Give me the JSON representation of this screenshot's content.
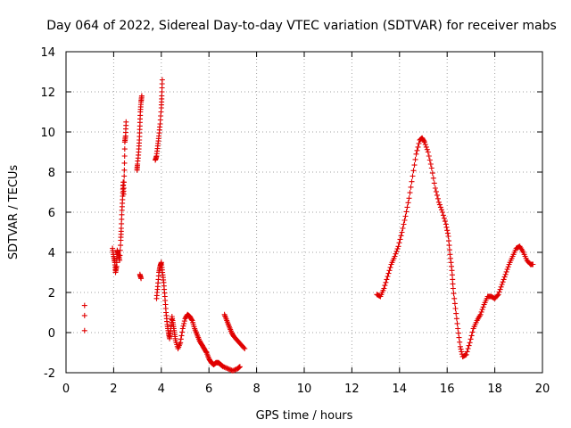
{
  "chart_data": {
    "type": "scatter",
    "title": "Day 064 of 2022, Sidereal Day-to-day VTEC variation (SDTVAR) for receiver mabs",
    "xlabel": "GPS time / hours",
    "ylabel": "SDTVAR / TECUs",
    "xlim": [
      0,
      20
    ],
    "ylim": [
      -2,
      14
    ],
    "xticks": [
      0,
      2,
      4,
      6,
      8,
      10,
      12,
      14,
      16,
      18,
      20
    ],
    "yticks": [
      -2,
      0,
      2,
      4,
      6,
      8,
      10,
      12,
      14
    ],
    "grid": true,
    "marker": "+",
    "color": "#e00000",
    "series": [
      {
        "name": "SDTVAR",
        "points": [
          [
            0.78,
            1.35
          ],
          [
            0.78,
            0.85
          ],
          [
            0.78,
            0.1
          ],
          [
            1.95,
            4.2
          ],
          [
            2.0,
            3.8
          ],
          [
            2.05,
            3.5
          ],
          [
            2.08,
            3.0
          ],
          [
            2.12,
            3.3
          ],
          [
            2.15,
            4.1
          ],
          [
            2.2,
            3.9
          ],
          [
            2.25,
            3.6
          ],
          [
            2.3,
            4.6
          ],
          [
            2.32,
            5.2
          ],
          [
            2.35,
            6.1
          ],
          [
            2.38,
            6.8
          ],
          [
            2.4,
            7.5
          ],
          [
            2.42,
            6.9
          ],
          [
            2.45,
            8.1
          ],
          [
            2.47,
            9.5
          ],
          [
            2.5,
            9.8
          ],
          [
            2.52,
            10.5
          ],
          [
            2.98,
            8.1
          ],
          [
            3.0,
            8.4
          ],
          [
            3.05,
            9.0
          ],
          [
            3.08,
            9.6
          ],
          [
            3.1,
            10.3
          ],
          [
            3.12,
            11.0
          ],
          [
            3.15,
            11.5
          ],
          [
            3.18,
            11.8
          ],
          [
            3.1,
            2.9
          ],
          [
            3.15,
            2.7
          ],
          [
            3.75,
            8.6
          ],
          [
            3.8,
            8.8
          ],
          [
            3.85,
            9.3
          ],
          [
            3.9,
            9.8
          ],
          [
            3.95,
            10.4
          ],
          [
            4.0,
            11.2
          ],
          [
            4.02,
            11.8
          ],
          [
            4.04,
            12.6
          ],
          [
            3.8,
            1.7
          ],
          [
            3.85,
            2.3
          ],
          [
            3.9,
            3.0
          ],
          [
            3.95,
            3.3
          ],
          [
            4.0,
            3.5
          ],
          [
            4.05,
            3.0
          ],
          [
            4.1,
            2.5
          ],
          [
            4.15,
            1.8
          ],
          [
            4.2,
            1.0
          ],
          [
            4.25,
            0.4
          ],
          [
            4.3,
            0.0
          ],
          [
            4.35,
            -0.3
          ],
          [
            4.4,
            0.2
          ],
          [
            4.45,
            0.8
          ],
          [
            4.5,
            0.4
          ],
          [
            4.55,
            0.0
          ],
          [
            4.6,
            -0.4
          ],
          [
            4.7,
            -0.8
          ],
          [
            4.8,
            -0.5
          ],
          [
            4.9,
            0.2
          ],
          [
            5.0,
            0.7
          ],
          [
            5.1,
            0.9
          ],
          [
            5.2,
            0.8
          ],
          [
            5.3,
            0.6
          ],
          [
            5.4,
            0.2
          ],
          [
            5.5,
            -0.1
          ],
          [
            5.6,
            -0.4
          ],
          [
            5.7,
            -0.6
          ],
          [
            5.8,
            -0.8
          ],
          [
            5.9,
            -1.0
          ],
          [
            6.0,
            -1.3
          ],
          [
            6.1,
            -1.5
          ],
          [
            6.2,
            -1.6
          ],
          [
            6.3,
            -1.5
          ],
          [
            6.4,
            -1.5
          ],
          [
            6.5,
            -1.6
          ],
          [
            6.6,
            -1.7
          ],
          [
            6.8,
            -1.8
          ],
          [
            7.0,
            -1.9
          ],
          [
            7.2,
            -1.8
          ],
          [
            7.3,
            -1.7
          ],
          [
            6.65,
            0.9
          ],
          [
            6.75,
            0.6
          ],
          [
            6.85,
            0.3
          ],
          [
            6.95,
            0.0
          ],
          [
            7.05,
            -0.2
          ],
          [
            7.2,
            -0.4
          ],
          [
            7.35,
            -0.6
          ],
          [
            7.5,
            -0.8
          ],
          [
            13.05,
            1.9
          ],
          [
            13.2,
            1.8
          ],
          [
            13.35,
            2.2
          ],
          [
            13.5,
            2.8
          ],
          [
            13.65,
            3.4
          ],
          [
            13.8,
            3.8
          ],
          [
            13.95,
            4.3
          ],
          [
            14.1,
            5.0
          ],
          [
            14.25,
            5.8
          ],
          [
            14.4,
            6.7
          ],
          [
            14.55,
            7.8
          ],
          [
            14.7,
            8.9
          ],
          [
            14.85,
            9.6
          ],
          [
            14.95,
            9.7
          ],
          [
            15.05,
            9.5
          ],
          [
            15.2,
            9.0
          ],
          [
            15.35,
            8.2
          ],
          [
            15.5,
            7.2
          ],
          [
            15.65,
            6.5
          ],
          [
            15.8,
            6.0
          ],
          [
            15.95,
            5.4
          ],
          [
            16.05,
            4.8
          ],
          [
            16.12,
            3.9
          ],
          [
            16.2,
            3.1
          ],
          [
            16.25,
            2.2
          ],
          [
            16.35,
            1.2
          ],
          [
            16.45,
            0.2
          ],
          [
            16.55,
            -0.7
          ],
          [
            16.65,
            -1.2
          ],
          [
            16.8,
            -1.1
          ],
          [
            16.95,
            -0.5
          ],
          [
            17.1,
            0.2
          ],
          [
            17.25,
            0.6
          ],
          [
            17.4,
            0.9
          ],
          [
            17.55,
            1.4
          ],
          [
            17.7,
            1.8
          ],
          [
            17.85,
            1.8
          ],
          [
            18.0,
            1.7
          ],
          [
            18.15,
            1.9
          ],
          [
            18.3,
            2.4
          ],
          [
            18.45,
            2.9
          ],
          [
            18.6,
            3.4
          ],
          [
            18.75,
            3.8
          ],
          [
            18.9,
            4.2
          ],
          [
            19.05,
            4.3
          ],
          [
            19.2,
            4.0
          ],
          [
            19.35,
            3.6
          ],
          [
            19.5,
            3.4
          ],
          [
            19.6,
            3.4
          ]
        ]
      }
    ]
  }
}
